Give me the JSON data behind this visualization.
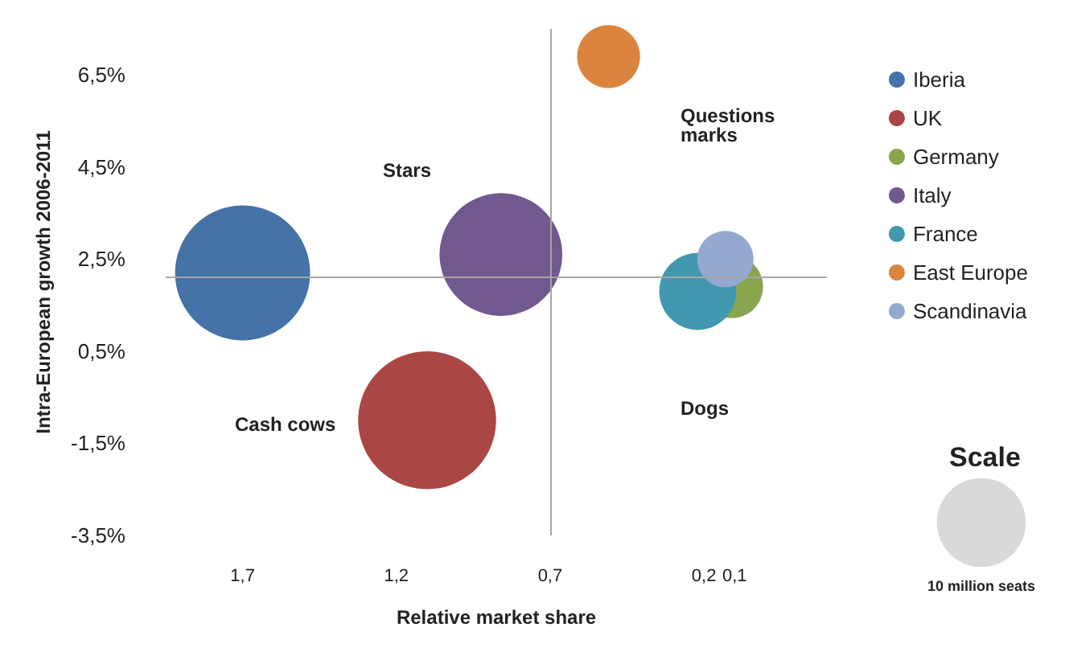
{
  "chart_data": {
    "type": "bubble",
    "xlabel": "Relative market share",
    "ylabel": "Intra-European growth 2006-2011",
    "xlim": [
      1.95,
      -0.2
    ],
    "ylim": [
      -3.5,
      7.5
    ],
    "xticks": [
      {
        "value": 1.7,
        "label": "1,7"
      },
      {
        "value": 1.2,
        "label": "1,2"
      },
      {
        "value": 0.7,
        "label": "0,7"
      },
      {
        "value": 0.2,
        "label": "0,2"
      },
      {
        "value": 0.1,
        "label": "0,1"
      }
    ],
    "yticks": [
      {
        "value": -3.5,
        "label": "-3,5%"
      },
      {
        "value": -1.5,
        "label": "-1,5%"
      },
      {
        "value": 0.5,
        "label": "0,5%"
      },
      {
        "value": 2.5,
        "label": "2,5%"
      },
      {
        "value": 4.5,
        "label": "4,5%"
      },
      {
        "value": 6.5,
        "label": "6,5%"
      }
    ],
    "series": [
      {
        "name": "Iberia",
        "color": "#4572a7",
        "x": [
          1.7
        ],
        "values": [
          2.2
        ],
        "sizes": [
          23
        ]
      },
      {
        "name": "UK",
        "color": "#aa4643",
        "x": [
          1.1
        ],
        "values": [
          -1.0
        ],
        "sizes": [
          24
        ]
      },
      {
        "name": "Germany",
        "color": "#89a54e",
        "x": [
          0.11
        ],
        "values": [
          1.9
        ],
        "sizes": [
          5
        ]
      },
      {
        "name": "Italy",
        "color": "#71588f",
        "x": [
          0.86
        ],
        "values": [
          2.6
        ],
        "sizes": [
          19
        ]
      },
      {
        "name": "France",
        "color": "#4198af",
        "x": [
          0.22
        ],
        "values": [
          1.8
        ],
        "sizes": [
          7.5
        ]
      },
      {
        "name": "East Europe",
        "color": "#db843d",
        "x": [
          0.51
        ],
        "values": [
          6.9
        ],
        "sizes": [
          5
        ]
      },
      {
        "name": "Scandinavia",
        "color": "#93a9cf",
        "x": [
          0.13
        ],
        "values": [
          2.5
        ],
        "sizes": [
          4
        ]
      }
    ],
    "size_legend": [
      {
        "value": 10,
        "label": "10 million seats"
      }
    ],
    "ref_lines": [
      {
        "axis": "x",
        "value": 0.7,
        "color": "#a6a6a6"
      },
      {
        "axis": "y",
        "value": 2.1,
        "color": "#a6a6a6"
      }
    ],
    "annotations": [
      "Stars",
      "Questions marks",
      "Cash cows",
      "Dogs",
      "Scale"
    ],
    "legend": "right",
    "grid": false
  }
}
